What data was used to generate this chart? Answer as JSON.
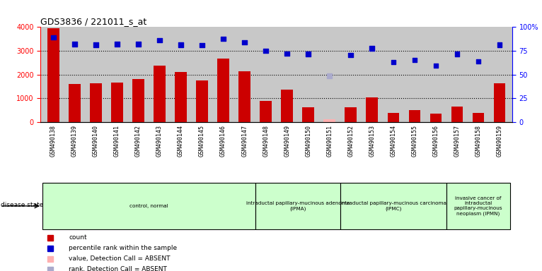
{
  "title": "GDS3836 / 221011_s_at",
  "samples": [
    "GSM490138",
    "GSM490139",
    "GSM490140",
    "GSM490141",
    "GSM490142",
    "GSM490143",
    "GSM490144",
    "GSM490145",
    "GSM490146",
    "GSM490147",
    "GSM490148",
    "GSM490149",
    "GSM490150",
    "GSM490151",
    "GSM490152",
    "GSM490153",
    "GSM490154",
    "GSM490155",
    "GSM490156",
    "GSM490157",
    "GSM490158",
    "GSM490159"
  ],
  "counts": [
    3950,
    1600,
    1630,
    1670,
    1800,
    2380,
    2110,
    1740,
    2660,
    2150,
    880,
    1360,
    610,
    120,
    620,
    1030,
    390,
    510,
    360,
    650,
    390,
    1640
  ],
  "absent_count_idx": [
    13
  ],
  "percentile_ranks": [
    89,
    82,
    81.5,
    82,
    82,
    86,
    81.5,
    81,
    87.5,
    84,
    75,
    72,
    71.5,
    48.5,
    70.5,
    77.5,
    63,
    65.5,
    59.5,
    71.5,
    64,
    81.5
  ],
  "absent_rank_idx": [
    13
  ],
  "ylim_left": [
    0,
    4000
  ],
  "ylim_right": [
    0,
    100
  ],
  "yticks_left": [
    0,
    1000,
    2000,
    3000,
    4000
  ],
  "yticks_right": [
    0,
    25,
    50,
    75,
    100
  ],
  "bar_color": "#cc0000",
  "absent_bar_color": "#ffb0b0",
  "dot_color": "#0000cc",
  "absent_dot_color": "#aaaacc",
  "bg_color": "#c8c8c8",
  "tick_bg_color": "#c8c8c8",
  "groups": [
    {
      "label": "control, normal",
      "start": 0,
      "end": 10
    },
    {
      "label": "intraductal papillary-mucinous adenoma\n(IPMA)",
      "start": 10,
      "end": 14
    },
    {
      "label": "intraductal papillary-mucinous carcinoma\n(IPMC)",
      "start": 14,
      "end": 19
    },
    {
      "label": "invasive cancer of\nintraductal\npapillary-mucinous\nneoplasm (IPMN)",
      "start": 19,
      "end": 22
    }
  ],
  "group_color": "#ccffcc",
  "legend_items": [
    {
      "label": "count",
      "color": "#cc0000"
    },
    {
      "label": "percentile rank within the sample",
      "color": "#0000cc"
    },
    {
      "label": "value, Detection Call = ABSENT",
      "color": "#ffb0b0"
    },
    {
      "label": "rank, Detection Call = ABSENT",
      "color": "#aaaacc"
    }
  ]
}
